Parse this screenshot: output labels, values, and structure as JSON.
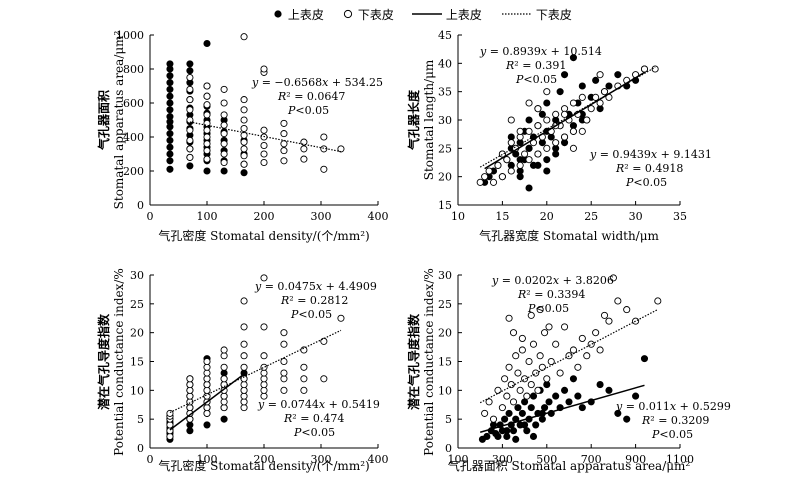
{
  "legend": {
    "upper_marker": "上表皮",
    "lower_marker": "下表皮",
    "upper_line": "上表皮",
    "lower_line": "下表皮"
  },
  "chart_data": [
    {
      "type": "scatter",
      "panel": "top-left",
      "xlabel": "气孔密度 Stomatal density/(个/mm²)",
      "ylabel_cn": "气孔器面积",
      "ylabel_en": "Stomatal apparatus area/μm²",
      "xlim": [
        0,
        400
      ],
      "ylim": [
        0,
        1000
      ],
      "xticks": [
        0,
        100,
        200,
        300,
        400
      ],
      "yticks": [
        0,
        200,
        400,
        600,
        800,
        1000
      ],
      "series": [
        {
          "name": "上表皮",
          "filled": true,
          "x": [
            35,
            35,
            35,
            35,
            35,
            35,
            35,
            35,
            35,
            35,
            35,
            35,
            35,
            35,
            35,
            35,
            35,
            70,
            70,
            70,
            70,
            70,
            70,
            70,
            70,
            70,
            70,
            70,
            70,
            70,
            70,
            100,
            100,
            100,
            100,
            100,
            100,
            100,
            100,
            100,
            100,
            100,
            100,
            100,
            130,
            130,
            130,
            130,
            130,
            130,
            165,
            165,
            165,
            165
          ],
          "y": [
            210,
            260,
            300,
            340,
            380,
            420,
            460,
            490,
            520,
            560,
            600,
            640,
            680,
            720,
            760,
            800,
            830,
            230,
            280,
            330,
            370,
            410,
            450,
            490,
            530,
            570,
            620,
            670,
            720,
            790,
            830,
            200,
            260,
            300,
            340,
            380,
            420,
            460,
            500,
            540,
            580,
            640,
            700,
            950,
            200,
            260,
            320,
            380,
            430,
            500,
            190,
            240,
            300,
            380
          ]
        },
        {
          "name": "下表皮",
          "filled": false,
          "x": [
            70,
            70,
            70,
            70,
            70,
            70,
            70,
            70,
            70,
            100,
            100,
            100,
            100,
            100,
            100,
            100,
            100,
            100,
            100,
            130,
            130,
            130,
            130,
            130,
            130,
            130,
            130,
            165,
            165,
            165,
            165,
            165,
            165,
            165,
            165,
            165,
            165,
            200,
            200,
            200,
            200,
            200,
            200,
            200,
            235,
            235,
            235,
            235,
            235,
            270,
            270,
            270,
            305,
            305,
            305,
            335
          ],
          "y": [
            280,
            330,
            380,
            440,
            500,
            560,
            620,
            680,
            750,
            270,
            320,
            360,
            400,
            440,
            480,
            530,
            590,
            640,
            700,
            250,
            300,
            360,
            420,
            470,
            530,
            600,
            680,
            240,
            290,
            330,
            370,
            410,
            450,
            500,
            560,
            620,
            990,
            250,
            300,
            350,
            400,
            440,
            780,
            800,
            260,
            320,
            360,
            420,
            480,
            270,
            330,
            370,
            210,
            330,
            400,
            330
          ]
        }
      ],
      "fits": [
        {
          "series": "上表皮",
          "slope": null,
          "intercept": null
        },
        {
          "series": "下表皮",
          "slope": -0.6568,
          "intercept": 534.25,
          "from": 70,
          "to": 335
        }
      ],
      "annotations": [
        {
          "equation": "y = −0.6568x + 534.25",
          "r2": "R² = 0.0647",
          "p": "P<0.05"
        }
      ]
    },
    {
      "type": "scatter",
      "panel": "top-right",
      "xlabel": "气孔器宽度 Stomatal width/μm",
      "ylabel_cn": "气孔器长度",
      "ylabel_en": "Stomatal length/μm",
      "xlim": [
        10,
        35
      ],
      "ylim": [
        15,
        45
      ],
      "xticks": [
        10,
        15,
        20,
        25,
        30,
        35
      ],
      "yticks": [
        15,
        20,
        25,
        30,
        35,
        40,
        45
      ],
      "series": [
        {
          "name": "上表皮",
          "filled": true,
          "x": [
            13,
            13.5,
            14,
            14.5,
            15,
            15.5,
            16,
            16,
            16.5,
            17,
            17,
            17.5,
            17.5,
            18,
            18,
            18.5,
            18.5,
            19,
            19,
            19.5,
            19.5,
            20,
            20,
            20,
            20.5,
            21,
            21,
            21.5,
            21.5,
            22,
            22,
            22.5,
            23,
            23,
            23.5,
            24,
            24,
            24.5,
            25,
            25.5,
            26,
            26.5,
            27,
            28,
            29,
            30,
            31,
            15,
            16,
            17,
            18,
            19,
            20,
            21,
            22,
            23,
            24,
            19,
            18,
            17
          ],
          "y": [
            19,
            20,
            21,
            22,
            20,
            23,
            22,
            25,
            24,
            21,
            26,
            23,
            28,
            25,
            30,
            22,
            27,
            24,
            29,
            26,
            31,
            23,
            28,
            33,
            27,
            25,
            30,
            29,
            35,
            27,
            38,
            31,
            29,
            41,
            33,
            31,
            36,
            30,
            34,
            37,
            32,
            35,
            36,
            38,
            36,
            37,
            39,
            24,
            27,
            20,
            18,
            22,
            21,
            24,
            26,
            28,
            30,
            32,
            25,
            23
          ]
        },
        {
          "name": "下表皮",
          "filled": false,
          "x": [
            12.5,
            13,
            13.5,
            14,
            14.5,
            15,
            15,
            15.5,
            16,
            16,
            16.5,
            17,
            17,
            17.5,
            18,
            18,
            18.5,
            19,
            19,
            19.5,
            20,
            20,
            20.5,
            21,
            21,
            21.5,
            22,
            22,
            22.5,
            23,
            23,
            23.5,
            24,
            24.5,
            25,
            25.5,
            26,
            26.5,
            27,
            28,
            29,
            30,
            31,
            32.2,
            16,
            18,
            20,
            22,
            24,
            26,
            17,
            19,
            21,
            23
          ],
          "y": [
            19,
            20,
            21,
            19,
            22,
            24,
            20,
            23,
            26,
            21,
            25,
            27,
            22,
            24,
            28,
            23,
            26,
            29,
            24,
            27,
            30,
            25,
            28,
            31,
            26,
            29,
            32,
            27,
            30,
            33,
            28,
            31,
            34,
            30,
            32,
            34,
            33,
            35,
            34,
            36,
            37,
            38,
            39,
            39,
            30,
            33,
            35,
            31,
            28,
            38,
            28,
            32,
            29,
            25
          ]
        }
      ],
      "fits": [
        {
          "series": "上表皮",
          "slope": 0.9439,
          "intercept": 9.1431,
          "from": 13,
          "to": 31
        },
        {
          "series": "下表皮",
          "slope": 0.8939,
          "intercept": 10.514,
          "from": 12.5,
          "to": 32.2
        }
      ],
      "annotations": [
        {
          "equation": "y = 0.8939x + 10.514",
          "r2": "R² = 0.391",
          "p": "P<0.05"
        },
        {
          "equation": "y = 0.9439x + 9.1431",
          "r2": "R² = 0.4918",
          "p": "P<0.05"
        }
      ]
    },
    {
      "type": "scatter",
      "panel": "bottom-left",
      "xlabel": "气孔密度 Stomatal density/(个/mm²)",
      "ylabel_cn": "潜在气孔导度指数",
      "ylabel_en": "Potential conductance index/%",
      "xlim": [
        0,
        400
      ],
      "ylim": [
        0,
        30
      ],
      "xticks": [
        0,
        100,
        200,
        300,
        400
      ],
      "yticks": [
        0,
        5,
        10,
        15,
        20,
        25,
        30
      ],
      "series": [
        {
          "name": "上表皮",
          "filled": true,
          "x": [
            35,
            35,
            35,
            35,
            35,
            35,
            35,
            35,
            35,
            35,
            35,
            35,
            70,
            70,
            70,
            70,
            70,
            70,
            70,
            70,
            70,
            70,
            100,
            100,
            100,
            100,
            100,
            100,
            100,
            100,
            100,
            130,
            130,
            130,
            130,
            130,
            130,
            165,
            165,
            165,
            165
          ],
          "y": [
            1.5,
            2,
            2.5,
            3,
            3.5,
            4,
            4.5,
            5,
            5.5,
            3.2,
            2.8,
            4.2,
            3,
            4,
            5,
            6,
            7,
            8,
            9,
            10,
            11,
            12,
            4,
            6,
            7,
            8,
            9,
            10,
            11,
            12,
            15.5,
            5,
            7,
            9,
            11,
            12,
            13,
            8,
            10,
            12,
            13
          ]
        },
        {
          "name": "下表皮",
          "filled": false,
          "x": [
            35,
            35,
            35,
            35,
            35,
            35,
            70,
            70,
            70,
            70,
            70,
            70,
            70,
            70,
            100,
            100,
            100,
            100,
            100,
            100,
            100,
            100,
            100,
            100,
            130,
            130,
            130,
            130,
            130,
            130,
            130,
            130,
            130,
            165,
            165,
            165,
            165,
            165,
            165,
            165,
            165,
            165,
            165,
            165,
            200,
            200,
            200,
            200,
            200,
            200,
            200,
            200,
            200,
            235,
            235,
            235,
            235,
            235,
            235,
            270,
            270,
            270,
            270,
            305,
            305,
            335
          ],
          "y": [
            2,
            3,
            4,
            5,
            5.5,
            6,
            5,
            6,
            7,
            8,
            9,
            10,
            11,
            12,
            6,
            7,
            8,
            9,
            10,
            11,
            12,
            13,
            14,
            15,
            7,
            8,
            9,
            10,
            11,
            12,
            14,
            16,
            17,
            7,
            8,
            9,
            10,
            11,
            12,
            14,
            16,
            18,
            21,
            25.5,
            9,
            10,
            11,
            12,
            13,
            14,
            16,
            21,
            29.5,
            10,
            12,
            13,
            15,
            18,
            20,
            10,
            12,
            14,
            17,
            12,
            18.5,
            22.5
          ]
        }
      ],
      "fits": [
        {
          "series": "上表皮",
          "slope": 0.0744,
          "intercept": 0.5419,
          "from": 35,
          "to": 165
        },
        {
          "series": "下表皮",
          "slope": 0.0475,
          "intercept": 4.4909,
          "from": 35,
          "to": 335
        }
      ],
      "annotations": [
        {
          "equation": "y = 0.0475x + 4.4909",
          "r2": "R² = 0.2812",
          "p": "P<0.05"
        },
        {
          "equation": "y = 0.0744x + 0.5419",
          "r2": "R² = 0.474",
          "p": "P<0.05"
        }
      ]
    },
    {
      "type": "scatter",
      "panel": "bottom-right",
      "xlabel": "气孔器面积 Stomatal apparatus area/μm²",
      "ylabel_cn": "潜在气孔导度指数",
      "ylabel_en": "Potential conductance index/%",
      "xlim": [
        100,
        1100
      ],
      "ylim": [
        0,
        30
      ],
      "xticks": [
        100,
        300,
        500,
        700,
        900,
        1100
      ],
      "yticks": [
        0,
        5,
        10,
        15,
        20,
        25,
        30
      ],
      "series": [
        {
          "name": "上表皮",
          "filled": true,
          "x": [
            210,
            230,
            250,
            270,
            290,
            300,
            310,
            320,
            330,
            340,
            350,
            360,
            370,
            380,
            390,
            400,
            410,
            420,
            430,
            440,
            450,
            460,
            470,
            480,
            490,
            500,
            510,
            520,
            540,
            560,
            580,
            600,
            620,
            640,
            660,
            700,
            740,
            780,
            820,
            860,
            900,
            940,
            260,
            280,
            320,
            360,
            400,
            440,
            480
          ],
          "y": [
            1.5,
            2,
            3,
            2.5,
            4,
            3,
            5,
            2,
            6,
            4,
            3,
            5,
            7,
            4,
            6,
            8,
            3,
            5,
            7,
            9,
            4,
            6,
            10,
            5,
            7,
            11,
            8,
            6,
            9,
            7,
            10,
            8,
            12,
            9,
            7,
            8,
            11,
            10,
            6,
            5,
            9,
            15.5,
            4,
            2,
            3,
            1.5,
            4,
            2,
            6
          ]
        },
        {
          "name": "下表皮",
          "filled": false,
          "x": [
            220,
            240,
            260,
            280,
            300,
            310,
            320,
            330,
            340,
            350,
            360,
            370,
            380,
            390,
            400,
            410,
            420,
            430,
            440,
            450,
            460,
            470,
            480,
            490,
            500,
            520,
            540,
            560,
            580,
            600,
            620,
            640,
            660,
            680,
            700,
            720,
            740,
            760,
            780,
            800,
            820,
            860,
            900,
            1000,
            330,
            350,
            390,
            430,
            470,
            510
          ],
          "y": [
            6,
            8,
            5,
            10,
            7,
            12,
            9,
            14,
            11,
            8,
            16,
            13,
            10,
            17,
            12,
            9,
            15,
            11,
            18,
            13,
            10,
            16,
            14,
            20,
            12,
            15,
            18,
            13,
            21,
            16,
            17,
            14,
            19,
            16,
            18,
            20,
            17,
            23,
            22,
            29.5,
            25.5,
            24,
            22,
            25.5,
            22.5,
            20,
            19,
            23,
            24,
            21
          ]
        }
      ],
      "fits": [
        {
          "series": "上表皮",
          "slope": 0.011,
          "intercept": 0.5299,
          "from": 200,
          "to": 940
        },
        {
          "series": "下表皮",
          "slope": 0.0202,
          "intercept": 3.8206,
          "from": 200,
          "to": 1000
        }
      ],
      "annotations": [
        {
          "equation": "y = 0.0202x + 3.8206",
          "r2": "R² = 0.3394",
          "p": "P<0.05"
        },
        {
          "equation": "y = 0.011x + 0.5299",
          "r2": "R² = 0.3209",
          "p": "P<0.05"
        }
      ]
    }
  ]
}
